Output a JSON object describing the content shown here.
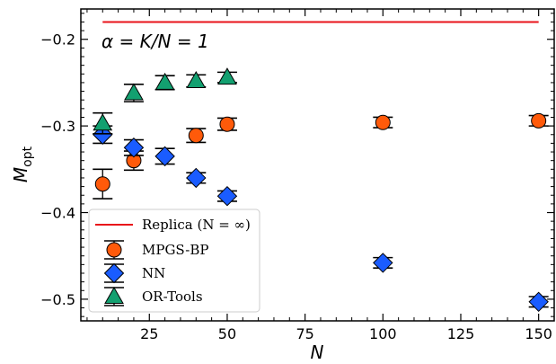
{
  "chart_data": {
    "type": "scatter",
    "xlabel": "N",
    "ylabel": "M_opt",
    "xlim": [
      3,
      155
    ],
    "ylim": [
      -0.525,
      -0.165
    ],
    "xticks": [
      25,
      50,
      75,
      100,
      125,
      150
    ],
    "yticks": [
      -0.2,
      -0.3,
      -0.4,
      -0.5
    ],
    "xtick_labels": [
      "25",
      "50",
      "75",
      "100",
      "125",
      "150"
    ],
    "ytick_labels": [
      "−0.2",
      "−0.3",
      "−0.4",
      "−0.5"
    ],
    "annotation": "α = K/N = 1",
    "legend_position": "lower-left",
    "replica": {
      "name": "Replica (N = ∞)",
      "y": -0.18,
      "x_range": [
        10,
        150
      ],
      "color": "#e8131a"
    },
    "series": [
      {
        "name": "MPGS-BP",
        "marker": "circle",
        "color": "#ff5a0a",
        "x": [
          10,
          20,
          40,
          50,
          100,
          150
        ],
        "y": [
          -0.367,
          -0.34,
          -0.311,
          -0.298,
          -0.296,
          -0.294
        ],
        "err": [
          0.017,
          0.011,
          0.008,
          0.007,
          0.006,
          0.006
        ]
      },
      {
        "name": "NN",
        "marker": "diamond",
        "color": "#1a5cff",
        "x": [
          10,
          20,
          30,
          40,
          50,
          100,
          150
        ],
        "y": [
          -0.31,
          -0.325,
          -0.335,
          -0.36,
          -0.381,
          -0.458,
          -0.503
        ],
        "err": [
          0.01,
          0.009,
          0.009,
          0.006,
          0.006,
          0.006,
          0.006
        ]
      },
      {
        "name": "OR-Tools",
        "marker": "triangle",
        "color": "#13a070",
        "x": [
          10,
          20,
          30,
          40,
          50
        ],
        "y": [
          -0.297,
          -0.262,
          -0.25,
          -0.248,
          -0.244
        ],
        "err": [
          0.012,
          0.01,
          0.008,
          0.007,
          0.006
        ]
      }
    ]
  }
}
